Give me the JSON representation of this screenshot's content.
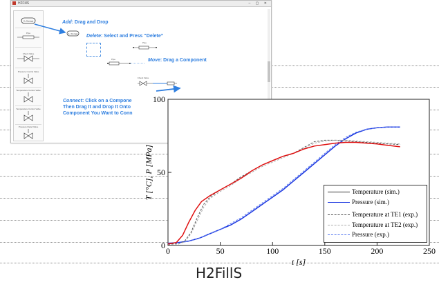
{
  "ui": {
    "window_title": "H2FillS",
    "palette_items": [
      "H₂ Storage",
      "Pipe",
      "Check Valve",
      "Pressure Control Valve",
      "Temperature Control Valve",
      "Temperature Control Valve",
      "Pressure Relief Valve"
    ],
    "annotations": {
      "add_verb": "Add",
      "add_rest": ": Drag and Drop",
      "delete_verb": "Delete",
      "delete_rest": ": Select and Press “Delete”",
      "move_verb": "Move",
      "move_rest": ": Drag a Component",
      "connect_verb": "Connect",
      "connect_line1_rest": ": Click on a Compone",
      "connect_line2": "Then Drag It and Drop It Onto",
      "connect_line3": "Component You Want to Conn"
    },
    "canvas_components": [
      "H₂ Storage",
      "Pipe",
      "Pipe",
      "Check Valve"
    ]
  },
  "caption": "H2FillS",
  "colors": {
    "accent_blue": "#2f7fe0",
    "temp_sim": "#e01010",
    "pressure_sim": "#1a35e0",
    "temp_te1": "#555555",
    "temp_te2": "#aaaaaa",
    "pressure_exp": "#5a7cf0"
  },
  "chart_data": {
    "type": "line",
    "xlabel": "t [s]",
    "ylabel": "T [°C], P [MPa]",
    "xlim": [
      0,
      250
    ],
    "ylim": [
      0,
      100
    ],
    "xticks": [
      0,
      50,
      100,
      150,
      200,
      250
    ],
    "yticks": [
      0,
      50,
      100
    ],
    "legend_position": "bottom-right",
    "grid": false,
    "series": [
      {
        "name": "Temperature (sim.)",
        "style": "solid",
        "color": "#e01010",
        "x": [
          0,
          8,
          14,
          20,
          26,
          32,
          40,
          50,
          60,
          70,
          80,
          90,
          100,
          110,
          120,
          130,
          140,
          150,
          160,
          170,
          180,
          190,
          200,
          210,
          222
        ],
        "y": [
          1,
          2,
          7,
          16,
          24,
          30,
          34,
          38,
          42,
          46,
          51,
          55,
          58,
          61,
          63,
          66,
          68,
          69,
          70,
          70.5,
          70.5,
          70,
          69.5,
          68.5,
          67.5
        ]
      },
      {
        "name": "Pressure (sim.)",
        "style": "solid",
        "color": "#1a35e0",
        "x": [
          0,
          10,
          20,
          30,
          40,
          50,
          60,
          70,
          80,
          90,
          100,
          110,
          120,
          130,
          140,
          150,
          160,
          170,
          180,
          190,
          200,
          210,
          222
        ],
        "y": [
          1.5,
          2,
          3,
          5,
          8,
          11,
          14,
          18,
          23,
          28,
          33,
          38,
          44,
          50,
          56,
          62,
          68,
          73,
          77,
          79.5,
          80.5,
          81,
          81
        ]
      },
      {
        "name": "Temperature at TE1 (exp.)",
        "style": "dashed",
        "color": "#555555",
        "x": [
          0,
          10,
          16,
          22,
          28,
          34,
          40,
          50,
          60,
          70,
          80,
          90,
          100,
          110,
          120,
          130,
          140,
          150,
          160,
          170,
          180,
          190,
          200,
          210,
          222
        ],
        "y": [
          1,
          1,
          3,
          9,
          19,
          28,
          33,
          38,
          42,
          47,
          51,
          55,
          58,
          61,
          63,
          67,
          71,
          72,
          72,
          71.5,
          71,
          70.5,
          70,
          69.5,
          69
        ]
      },
      {
        "name": "Temperature at TE2 (exp.)",
        "style": "dashed",
        "color": "#aaaaaa",
        "x": [
          0,
          10,
          16,
          22,
          28,
          34,
          40,
          50,
          60,
          70,
          80,
          90,
          100,
          110,
          120,
          130,
          140,
          150,
          160,
          170,
          180,
          190,
          200,
          210,
          222
        ],
        "y": [
          0.5,
          1,
          2.5,
          8,
          17,
          26,
          32,
          37,
          41,
          46,
          50,
          54,
          57,
          60,
          63,
          66,
          70,
          71.5,
          72,
          72,
          71.5,
          71,
          70.5,
          70,
          69.5
        ]
      },
      {
        "name": "Pressure (exp.)",
        "style": "dashed",
        "color": "#5a7cf0",
        "x": [
          0,
          10,
          20,
          30,
          40,
          50,
          60,
          70,
          80,
          90,
          100,
          110,
          120,
          130,
          140,
          150,
          160,
          170,
          180,
          190,
          200,
          210,
          222
        ],
        "y": [
          1,
          1.5,
          3,
          5,
          8,
          11,
          15,
          19,
          24,
          29,
          34,
          39,
          45,
          51,
          57,
          63,
          69,
          74,
          77.5,
          79.5,
          80.5,
          81,
          81
        ]
      }
    ]
  }
}
